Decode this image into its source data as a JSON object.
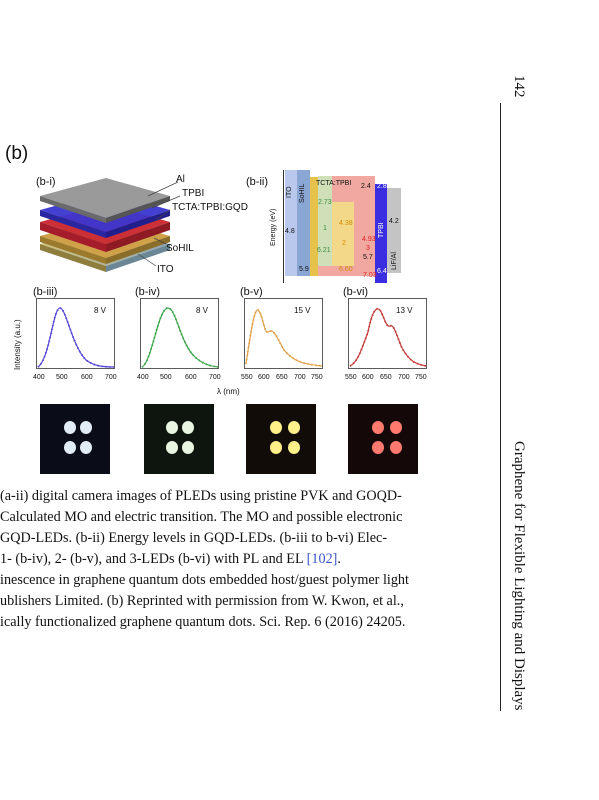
{
  "header": {
    "page_number": "142",
    "running_title": "Graphene for Flexible Lighting and Displays"
  },
  "figure": {
    "panel_label": "(b)",
    "stack": {
      "label": "(b-i)",
      "layers": [
        "Al",
        "TPBI",
        "TCTA:TPBI:GQD",
        "SoHIL",
        "ITO"
      ]
    },
    "energy": {
      "label": "(b-ii)",
      "ylabel": "Energy (eV)",
      "layer_names": [
        "ITO",
        "SoHIL",
        "TCTA:TPBI",
        "TPBI",
        "LiF/Al"
      ],
      "values": [
        "4.8",
        "5.9",
        "2.73",
        "6.21",
        "4.38",
        "2",
        "1",
        "4.93",
        "3",
        "2.4",
        "2.8",
        "4.2",
        "5.7",
        "6.60",
        "7.03",
        "6.4"
      ]
    },
    "spectra": {
      "ylabel": "Intensity (a.u.)",
      "xlabel": "λ (nm)",
      "panels": [
        {
          "label": "(b-iii)",
          "voltage": "8 V",
          "ticks": [
            "400",
            "500",
            "600",
            "700"
          ],
          "color": "#5548d8"
        },
        {
          "label": "(b-iv)",
          "voltage": "8 V",
          "ticks": [
            "400",
            "500",
            "600",
            "700"
          ],
          "color": "#3aa64a"
        },
        {
          "label": "(b-v)",
          "voltage": "15 V",
          "ticks": [
            "550",
            "600",
            "650",
            "700",
            "750"
          ],
          "color": "#e0a24a"
        },
        {
          "label": "(b-vi)",
          "voltage": "13 V",
          "ticks": [
            "550",
            "600",
            "650",
            "700",
            "750"
          ],
          "color": "#c43a3a"
        }
      ]
    },
    "photo_dot_colors": [
      "#e2ecf7",
      "#e8f5e0",
      "#fff08a",
      "#ff7a6e"
    ]
  },
  "caption": {
    "line1": "(a-ii) digital camera images of PLEDs using pristine PVK and GOQD-",
    "line2": "Calculated MO and electric transition. The MO and possible electronic",
    "line3": "GQD-LEDs. (b-ii) Energy levels in GQD-LEDs. (b-iii to b-vi) Elec-",
    "line4a": "1- (b-iv), 2- (b-v), and 3-LEDs (b-vi) with PL and EL ",
    "line4_ref": "[102]",
    "line4b": ".",
    "line5": "inescence in graphene quantum dots embedded host/guest polymer light",
    "line6": "ublishers Limited. (b) Reprinted with permission from W. Kwon, et al.,",
    "line7": "ically functionalized graphene quantum dots. Sci. Rep. 6 (2016) 24205."
  }
}
